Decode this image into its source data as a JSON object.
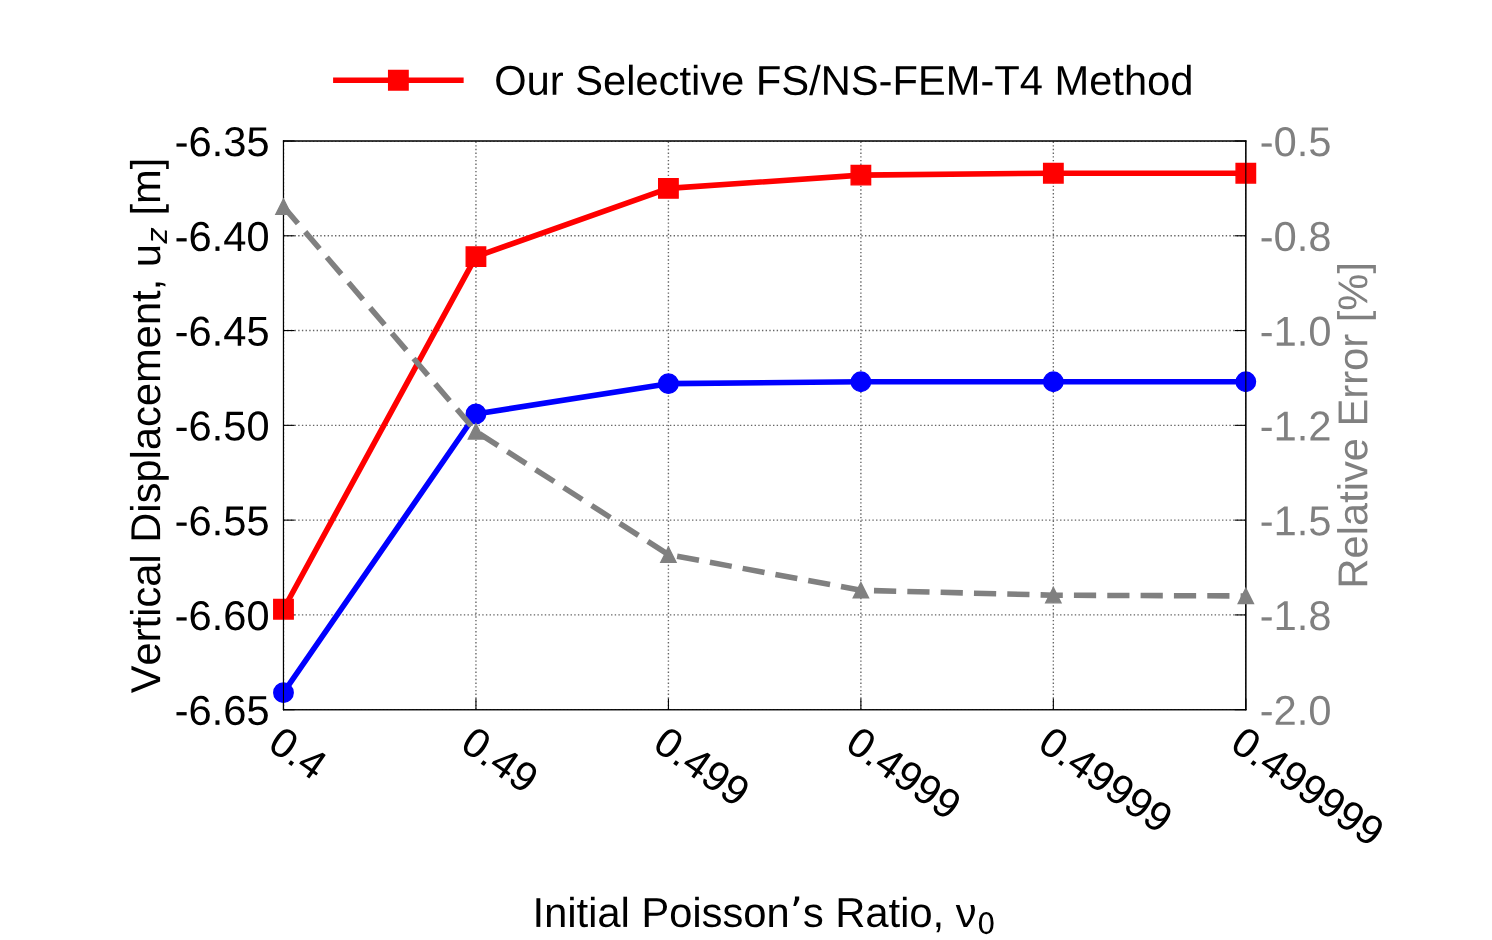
{
  "chart_data": {
    "type": "line",
    "categories": [
      "0.4",
      "0.49",
      "0.499",
      "0.4999",
      "0.49999",
      "0.499999"
    ],
    "xlabel": "Initial Poisson’s Ratio, ν$_{0}$",
    "ylabel": "Vertical Displacement, u$_{z}$ [m]",
    "y2label": "Relative Error [%]",
    "ylim": [
      -6.65,
      -6.35
    ],
    "yticks": [
      -6.65,
      {
        "value": -6.6,
        "label": "-6.60"
      },
      -6.55,
      {
        "value": -6.5,
        "label": "-6.50"
      },
      -6.45,
      {
        "value": -6.4,
        "label": "-6.40"
      },
      -6.35
    ],
    "y2lim": [
      -2.0,
      -0.5
    ],
    "y2ticks": [
      {
        "value": -2.0,
        "label": "-2.0"
      },
      {
        "value": -1.75,
        "label": "-1.8"
      },
      {
        "value": -1.5,
        "label": "-1.5"
      },
      {
        "value": -1.25,
        "label": "-1.2"
      },
      {
        "value": -1.0,
        "label": "-1.0"
      },
      {
        "value": -0.75,
        "label": "-0.8"
      },
      {
        "value": -0.5,
        "label": "-0.5"
      }
    ],
    "grid": true,
    "legend": "top",
    "series": [
      {
        "name": "Our Selective FS/NS-FEM-T4 Method",
        "color": "#ff0000",
        "marker": "square",
        "line_style": "solid",
        "values": [
          -6.597,
          -6.411,
          -6.375,
          -6.368,
          -6.367,
          -6.367
        ]
      },
      {
        "color": "#0000ff",
        "marker": "circle",
        "line_style": "solid",
        "values": [
          -6.641,
          -6.494,
          -6.478,
          -6.477,
          -6.477,
          -6.477
        ]
      },
      {
        "color": "#808080",
        "marker": "triangle",
        "line_style": "dashed",
        "axis": "y2",
        "values": [
          -0.673,
          -1.266,
          -1.591,
          -1.685,
          -1.698,
          -1.7
        ]
      }
    ]
  }
}
